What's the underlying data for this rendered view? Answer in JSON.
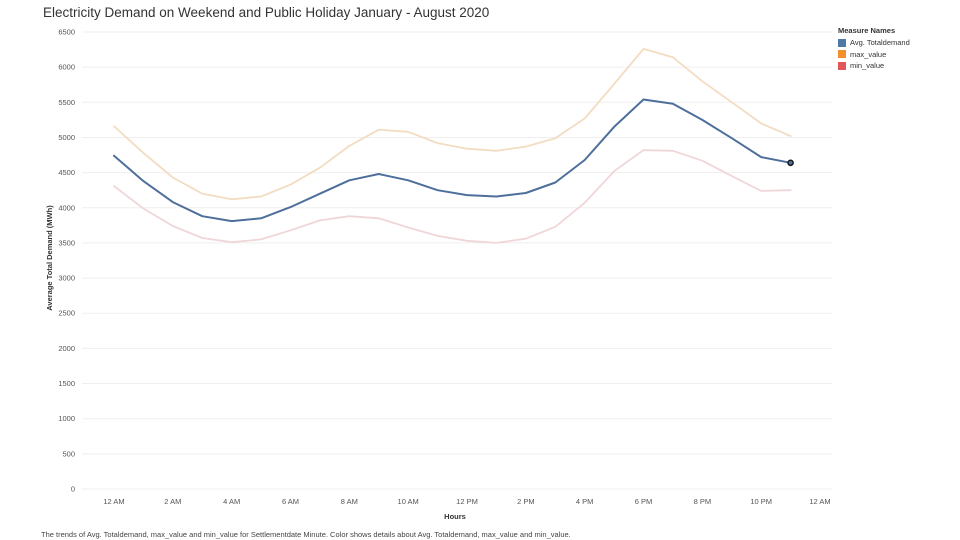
{
  "chart_data": {
    "type": "line",
    "title": "Electricity Demand on Weekend and Public Holiday January - August 2020",
    "xlabel": "Hours",
    "ylabel": "Average Total Demand (MWh)",
    "ylim": [
      0,
      6500
    ],
    "y_ticks": [
      0,
      500,
      1000,
      1500,
      2000,
      2500,
      3000,
      3500,
      4000,
      4500,
      5000,
      5500,
      6000,
      6500
    ],
    "x_ticks": [
      "12 AM",
      "2 AM",
      "4 AM",
      "6 AM",
      "8 AM",
      "10 AM",
      "12 PM",
      "2 PM",
      "4 PM",
      "6 PM",
      "8 PM",
      "10 PM",
      "12 AM"
    ],
    "x": [
      0,
      1,
      2,
      3,
      4,
      5,
      6,
      7,
      8,
      9,
      10,
      11,
      12,
      13,
      14,
      15,
      16,
      17,
      18,
      19,
      20,
      21,
      22,
      23
    ],
    "x_unit": "hour",
    "grid": "horizontal",
    "legend_title": "Measure Names",
    "legend_position": "right",
    "series": [
      {
        "name": "max_value",
        "color": "#f3dcc2",
        "values": [
          5160,
          4780,
          4430,
          4200,
          4120,
          4160,
          4330,
          4570,
          4880,
          5110,
          5080,
          4920,
          4840,
          4810,
          4870,
          4990,
          5270,
          5760,
          6260,
          6140,
          5800,
          5500,
          5200,
          5020
        ]
      },
      {
        "name": "min_value",
        "color": "#f0d6d8",
        "values": [
          4310,
          3990,
          3740,
          3570,
          3510,
          3550,
          3680,
          3820,
          3880,
          3850,
          3720,
          3600,
          3530,
          3500,
          3560,
          3730,
          4070,
          4520,
          4820,
          4810,
          4670,
          4450,
          4240,
          4250
        ]
      },
      {
        "name": "Avg. Totaldemand",
        "color": "#4e6f9b",
        "values": [
          4740,
          4380,
          4080,
          3880,
          3810,
          3850,
          4010,
          4200,
          4390,
          4480,
          4390,
          4250,
          4180,
          4160,
          4210,
          4360,
          4680,
          5150,
          5540,
          5480,
          5250,
          4990,
          4720,
          4640
        ]
      }
    ],
    "highlight_point": {
      "series": "Avg. Totaldemand",
      "x": 23,
      "y": 4640
    }
  },
  "legend": {
    "title": "Measure Names",
    "items": [
      {
        "label": "Avg. Totaldemand",
        "color": "#4e79a7"
      },
      {
        "label": "max_value",
        "color": "#f28e2b"
      },
      {
        "label": "min_value",
        "color": "#e15759"
      }
    ]
  },
  "footer": "The trends of Avg. Totaldemand, max_value and min_value for Settlementdate Minute.  Color shows details about Avg. Totaldemand, max_value and min_value."
}
